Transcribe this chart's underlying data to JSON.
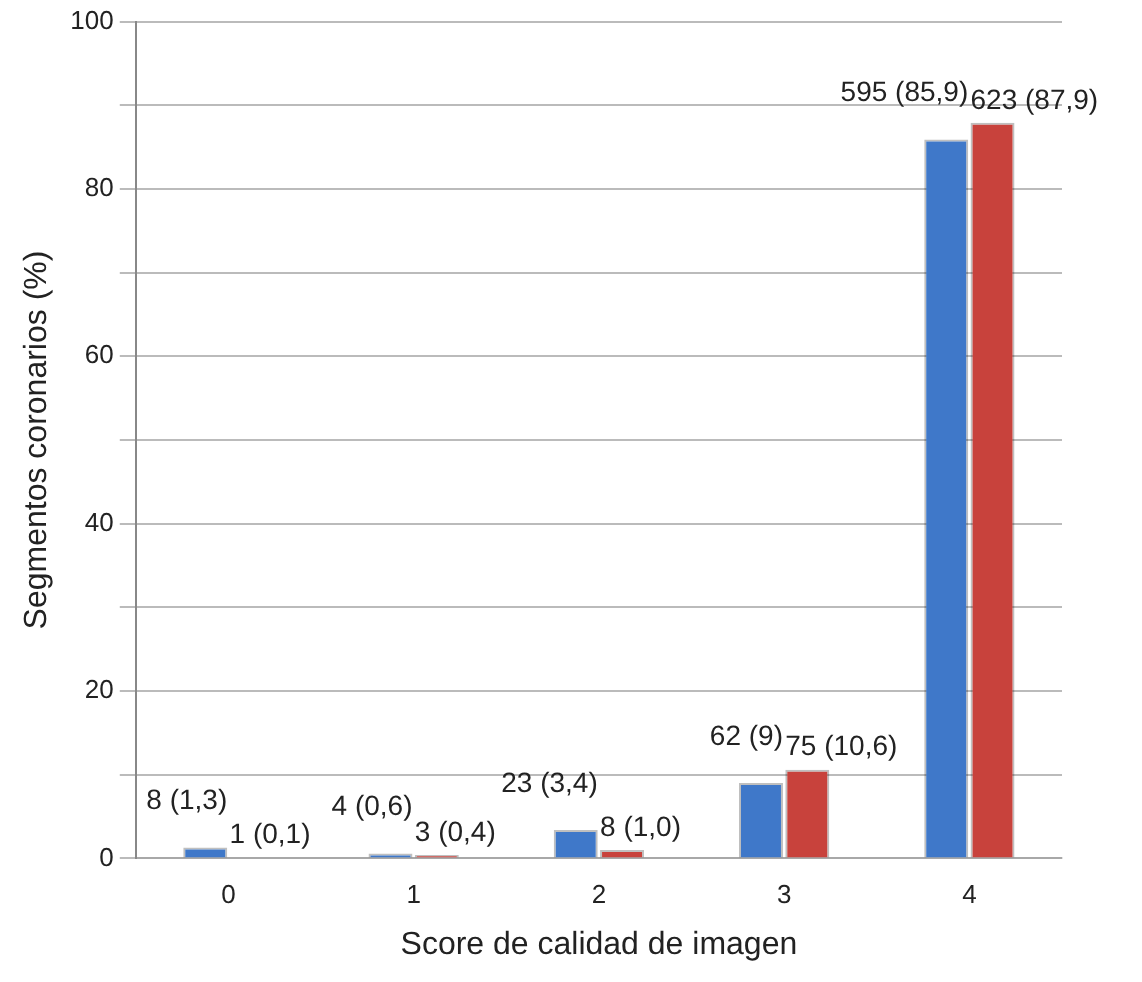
{
  "chart_data": {
    "type": "bar",
    "xlabel": "Score de calidad de imagen",
    "ylabel": "Segmentos coronarios (%)",
    "categories": [
      "0",
      "1",
      "2",
      "3",
      "4"
    ],
    "series": [
      {
        "color": "#3f78c9",
        "values": [
          1.3,
          0.6,
          3.4,
          9,
          85.9
        ],
        "value_labels": [
          "8 (1,3)",
          "4 (0,6)",
          "23 (3,4)",
          "62 (9)",
          "595 (85,9)"
        ]
      },
      {
        "color": "#c8423c",
        "values": [
          0.1,
          0.4,
          1.0,
          10.6,
          87.9
        ],
        "value_labels": [
          "1 (0,1)",
          "3 (0,4)",
          "8 (1,0)",
          "75 (10,6)",
          "623 (87,9)"
        ]
      }
    ],
    "ylim": [
      0,
      100
    ],
    "yticks": [
      0,
      {
        "value": 10,
        "label": null
      },
      20,
      {
        "value": 30,
        "label": null
      },
      40,
      {
        "value": 50,
        "label": null
      },
      60,
      {
        "value": 70,
        "label": null
      },
      80,
      {
        "value": 90,
        "label": null
      },
      100
    ],
    "grid": "y",
    "legend": false
  }
}
